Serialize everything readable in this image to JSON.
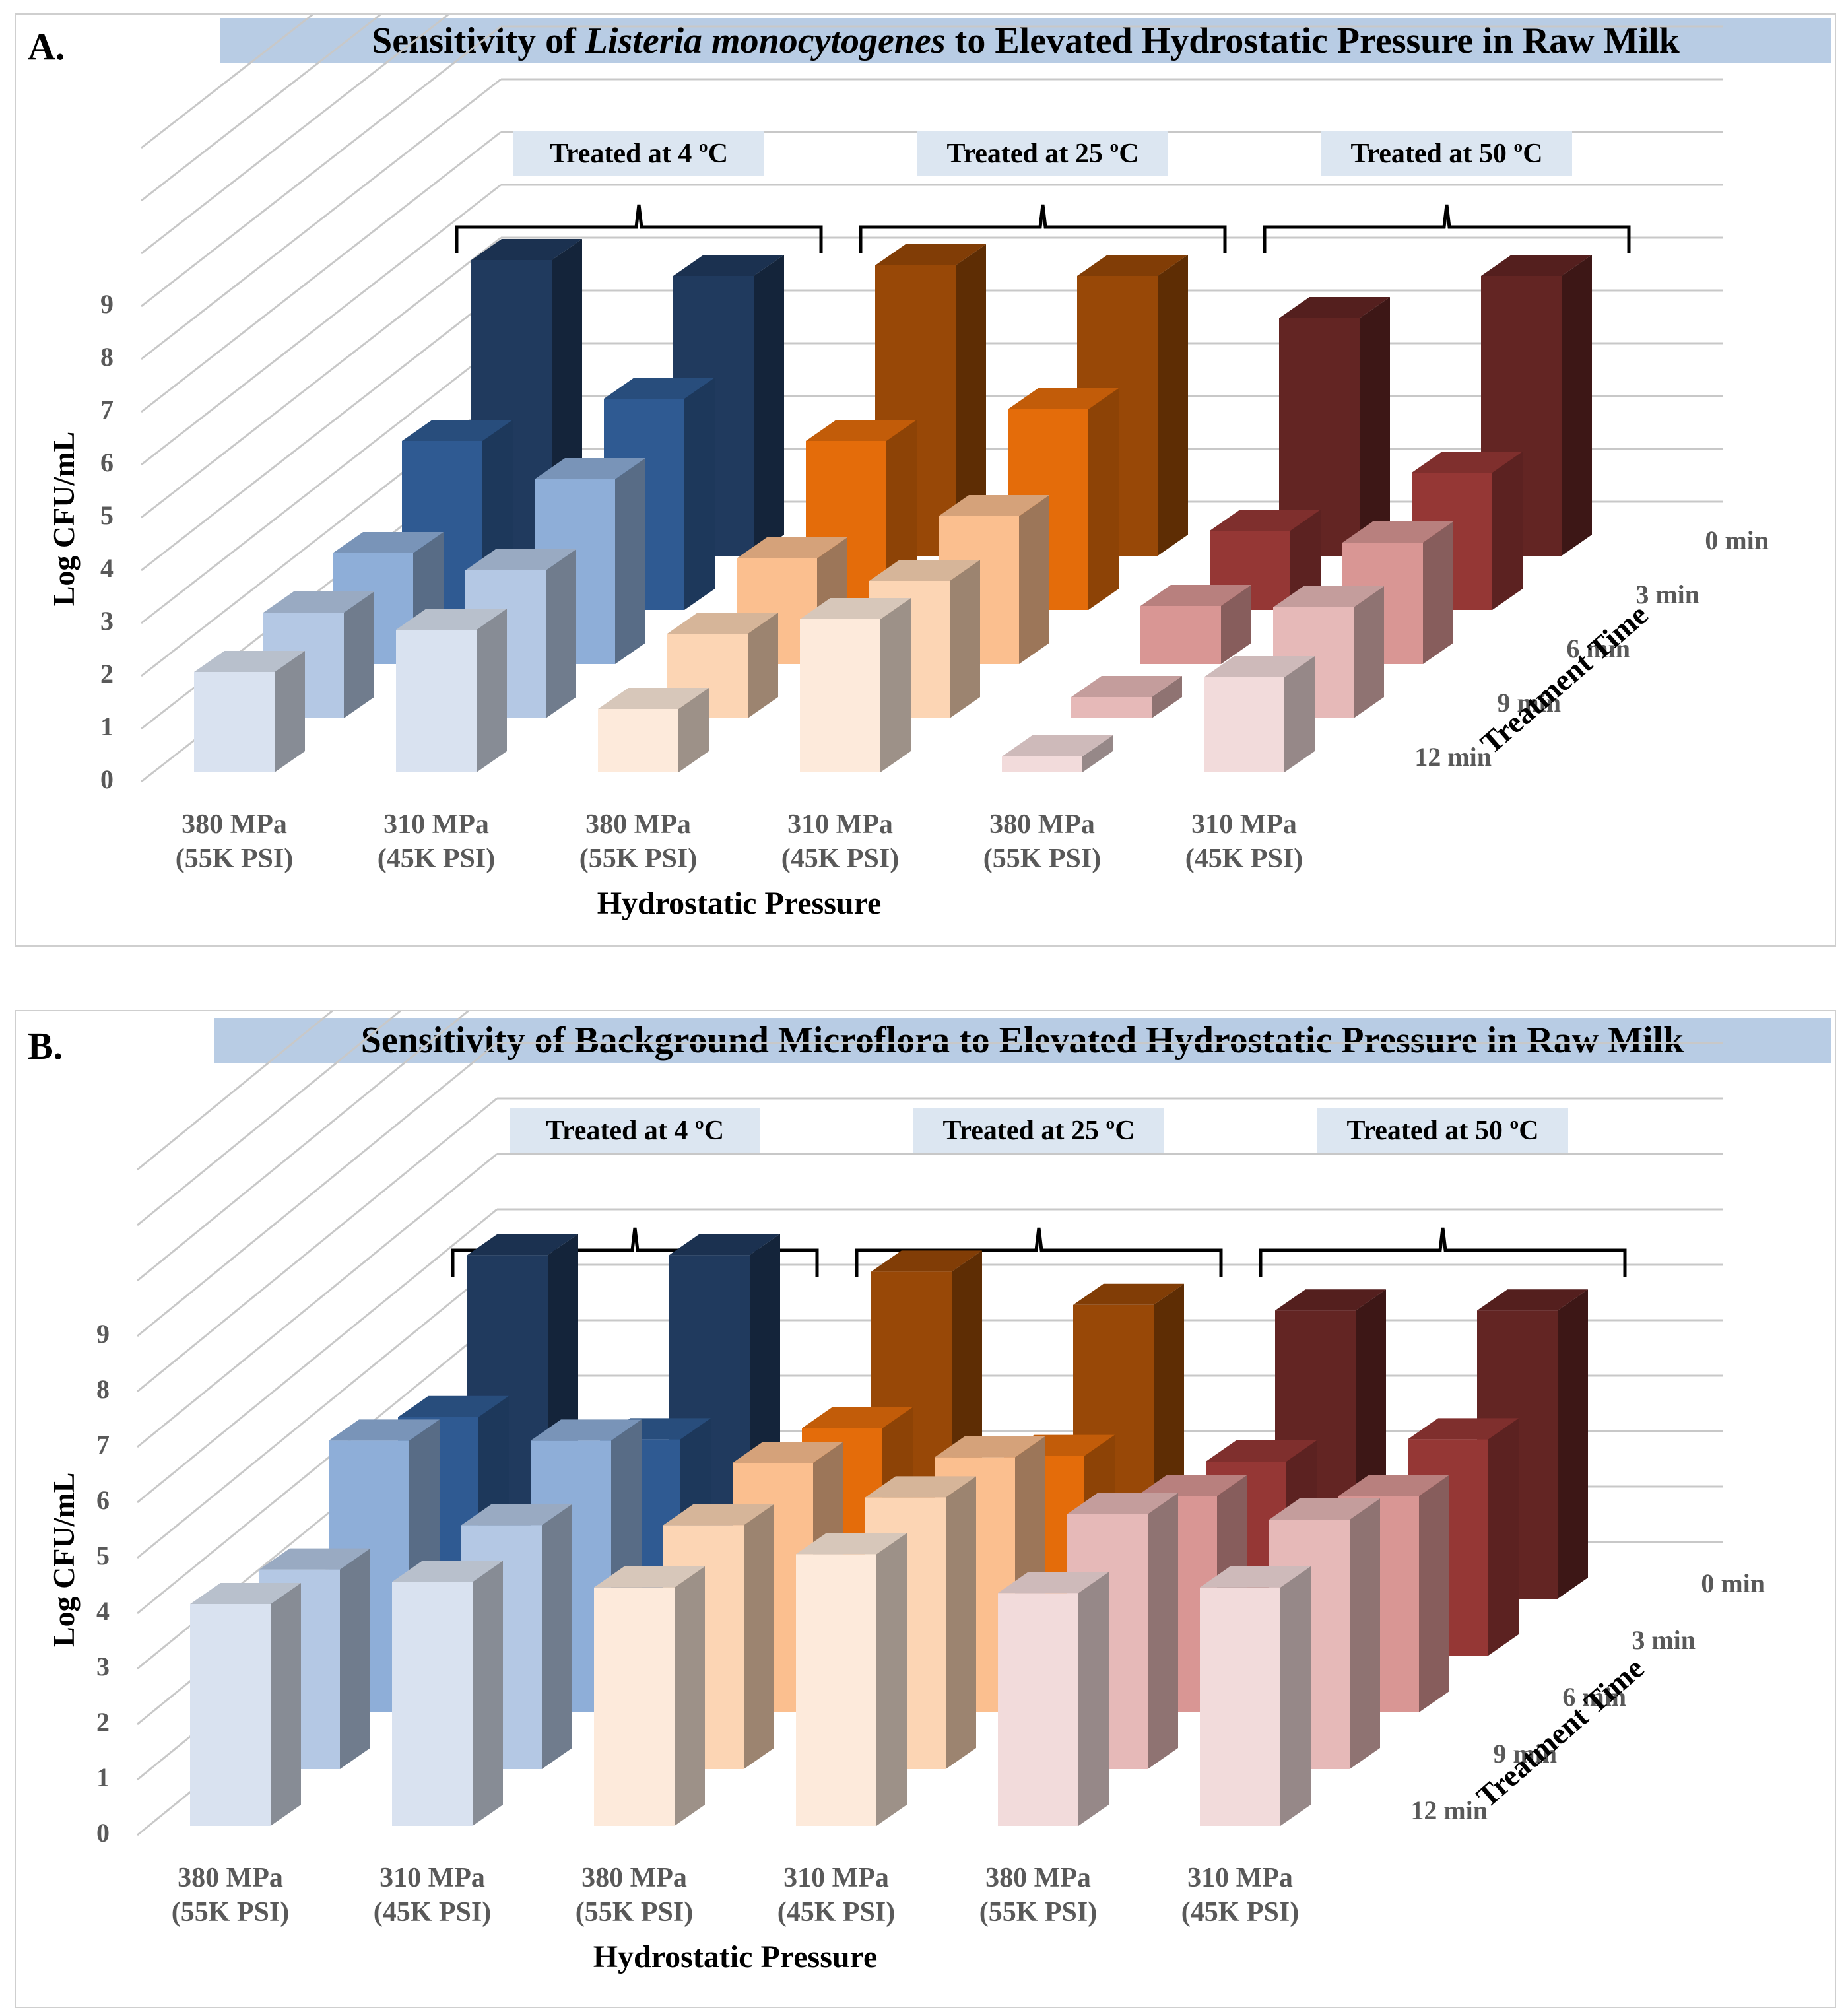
{
  "charts": [
    {
      "panel_label": "A.",
      "title_parts": [
        "Sensitivity of ",
        "Listeria monocytogenes",
        " to Elevated Hydrostatic Pressure in Raw Milk"
      ],
      "title_italic_index": 1
    },
    {
      "panel_label": "B.",
      "title_parts": [
        "Sensitivity of Background Microflora to Elevated Hydrostatic Pressure in Raw Milk"
      ],
      "title_italic_index": -1
    }
  ],
  "temperature_labels": [
    "Treated at 4 ºC",
    "Treated at 25 ºC",
    "Treated at 50 ºC"
  ],
  "colors": {
    "title_bg": "#b8cce4",
    "temp_bg": "#dce6f1",
    "grid": "#c8c8c8",
    "axis_text": "#595959",
    "blue": [
      "#d9e2f0",
      "#b4c8e4",
      "#8eaed8",
      "#2f5a92",
      "#203a5e"
    ],
    "orange": [
      "#fdeadb",
      "#fcd5b4",
      "#fbbf8f",
      "#e46c0a",
      "#984807"
    ],
    "red": [
      "#f2dbdb",
      "#e6b9b8",
      "#d99694",
      "#953735",
      "#632523"
    ]
  },
  "chart_data": [
    {
      "type": "bar-3d",
      "title": "Sensitivity of Listeria monocytogenes to Elevated Hydrostatic Pressure in Raw Milk",
      "xlabel": "Hydrostatic Pressure",
      "ylabel": "Log CFU/mL",
      "zlabel": "Treatment Time",
      "categories": [
        [
          "380 MPa",
          "(55K PSI)"
        ],
        [
          "310 MPa",
          "(45K PSI)"
        ],
        [
          "380 MPa",
          "(55K PSI)"
        ],
        [
          "310 MPa",
          "(45K PSI)"
        ],
        [
          "380 MPa",
          "(55K PSI)"
        ],
        [
          "310 MPa",
          "(45K PSI)"
        ]
      ],
      "depth_categories": [
        "0 min",
        "3 min",
        "6 min",
        "9 min",
        "12 min"
      ],
      "yticks": [
        0,
        1,
        2,
        3,
        4,
        5,
        6,
        7,
        8,
        9
      ],
      "ylim": [
        0,
        9
      ],
      "series": [
        {
          "name": "0 min",
          "values": [
            5.6,
            5.3,
            5.5,
            5.3,
            4.5,
            5.3
          ]
        },
        {
          "name": "3 min",
          "values": [
            3.2,
            4.0,
            3.2,
            3.8,
            1.5,
            2.6
          ]
        },
        {
          "name": "6 min",
          "values": [
            2.1,
            3.5,
            2.0,
            2.8,
            1.1,
            2.3
          ]
        },
        {
          "name": "9 min",
          "values": [
            2.0,
            2.8,
            1.6,
            2.6,
            0.4,
            2.1
          ]
        },
        {
          "name": "12 min",
          "values": [
            1.9,
            2.7,
            1.2,
            2.9,
            0.3,
            1.8
          ]
        }
      ]
    },
    {
      "type": "bar-3d",
      "title": "Sensitivity of Background Microflora to Elevated Hydrostatic Pressure in Raw Milk",
      "xlabel": "Hydrostatic Pressure",
      "ylabel": "Log CFU/mL",
      "zlabel": "Treatment Time",
      "categories": [
        [
          "380 MPa",
          "(55K PSI)"
        ],
        [
          "310 MPa",
          "(45K PSI)"
        ],
        [
          "380 MPa",
          "(55K PSI)"
        ],
        [
          "310 MPa",
          "(45K PSI)"
        ],
        [
          "380 MPa",
          "(55K PSI)"
        ],
        [
          "310 MPa",
          "(45K PSI)"
        ]
      ],
      "depth_categories": [
        "0 min",
        "3 min",
        "6 min",
        "9 min",
        "12 min"
      ],
      "yticks": [
        0,
        1,
        2,
        3,
        4,
        5,
        6,
        7,
        8,
        9
      ],
      "ylim": [
        0,
        9
      ],
      "series": [
        {
          "name": "0 min",
          "values": [
            6.2,
            6.2,
            5.9,
            5.3,
            5.2,
            5.2
          ]
        },
        {
          "name": "3 min",
          "values": [
            4.3,
            3.9,
            4.1,
            3.6,
            3.5,
            3.9
          ]
        },
        {
          "name": "6 min",
          "values": [
            4.9,
            4.9,
            4.5,
            4.6,
            3.9,
            3.9
          ]
        },
        {
          "name": "9 min",
          "values": [
            3.6,
            4.4,
            4.4,
            4.9,
            4.6,
            4.5
          ]
        },
        {
          "name": "12 min",
          "values": [
            4.0,
            4.4,
            4.3,
            4.9,
            4.2,
            4.3
          ]
        }
      ]
    }
  ]
}
